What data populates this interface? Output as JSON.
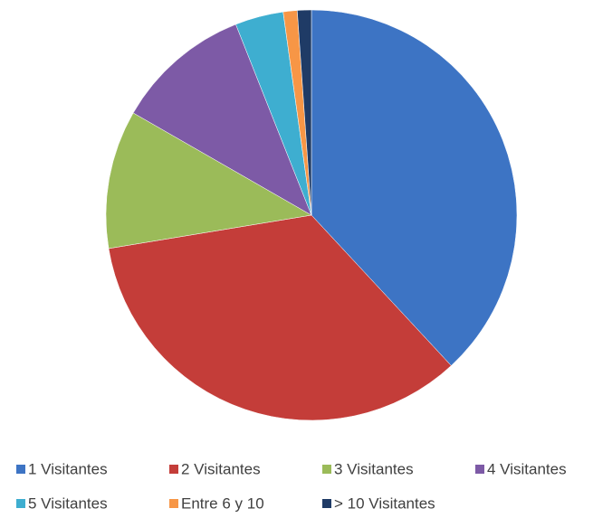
{
  "chart_data": {
    "type": "pie",
    "categories": [
      "1 Visitantes",
      "2 Visitantes",
      "3 Visitantes",
      "4 Visitantes",
      "5 Visitantes",
      "Entre 6 y 10",
      "> 10 Visitantes"
    ],
    "values": [
      38.1,
      34.3,
      10.9,
      10.7,
      3.8,
      1.1,
      1.1
    ],
    "colors": [
      "#3d74c4",
      "#c43d39",
      "#9bbb59",
      "#7d5aa6",
      "#3eaed0",
      "#f79646",
      "#1f3b66"
    ],
    "legend": "bottom"
  }
}
